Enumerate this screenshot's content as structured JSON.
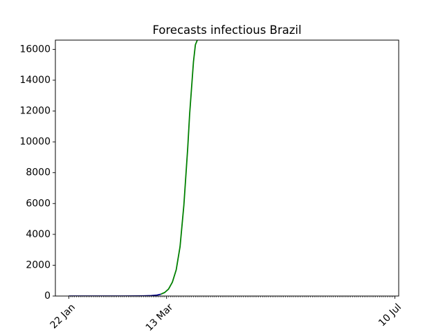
{
  "chart_data": {
    "type": "line",
    "title": "Forecasts infectious Brazil",
    "xlabel": "",
    "ylabel": "",
    "x_tick_labels": [
      "22 Jan",
      "13 Mar",
      "10 Jul"
    ],
    "x_tick_dates": [
      "2020-01-22",
      "2020-03-13",
      "2020-07-10"
    ],
    "xlim": [
      "2020-01-15",
      "2020-07-12"
    ],
    "ylim": [
      0,
      16600
    ],
    "y_ticks": [
      0,
      2000,
      4000,
      6000,
      8000,
      10000,
      12000,
      14000,
      16000
    ],
    "grid": false,
    "legend": null,
    "minor_ticks_daily": true,
    "series": [
      {
        "color": "#00008b",
        "x": [
          "2020-01-22",
          "2020-02-01",
          "2020-02-10",
          "2020-02-20",
          "2020-02-26",
          "2020-03-01",
          "2020-03-05",
          "2020-03-08",
          "2020-03-10"
        ],
        "values": [
          0,
          0,
          0,
          0,
          2,
          8,
          25,
          60,
          120
        ]
      },
      {
        "color": "#008000",
        "x": [
          "2020-03-10",
          "2020-03-12",
          "2020-03-14",
          "2020-03-16",
          "2020-03-18",
          "2020-03-20",
          "2020-03-22",
          "2020-03-24",
          "2020-03-25",
          "2020-03-26",
          "2020-03-27",
          "2020-03-28",
          "2020-03-29"
        ],
        "values": [
          120,
          230,
          450,
          900,
          1700,
          3200,
          5900,
          9600,
          11800,
          13500,
          15200,
          16300,
          16600
        ]
      }
    ]
  }
}
